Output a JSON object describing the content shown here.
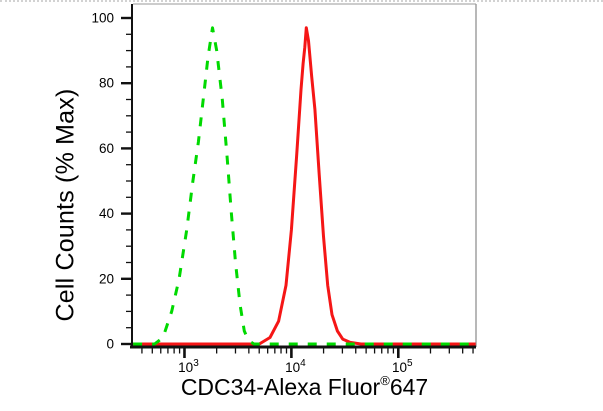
{
  "figure": {
    "background": "#ffffff",
    "frame_color": "#9a9a9a",
    "axis_color": "#111111",
    "text_color": "#000000"
  },
  "chart_data": {
    "type": "line",
    "chart_kind": "flow-cytometry-histogram-overlay",
    "title": "",
    "xlabel": "CDC34-Alexa Fluor®647",
    "x_axis_title": {
      "text": "CDC34-Alexa Fluor",
      "sup": "®",
      "suffix": "647"
    },
    "ylabel": "Cell Counts (% Max)",
    "x_scale": "log10",
    "x_range": [
      330,
      533000
    ],
    "ylim": [
      0,
      100
    ],
    "grid": "off",
    "legend": "none",
    "y_ticks": [
      0,
      20,
      40,
      60,
      80,
      100
    ],
    "y_minor_tick_step": 5,
    "x_major_ticks": [
      {
        "value": 1000,
        "label_base": "10",
        "label_exp": "3"
      },
      {
        "value": 10000,
        "label_base": "10",
        "label_exp": "4"
      },
      {
        "value": 100000,
        "label_base": "10",
        "label_exp": "5"
      }
    ],
    "series": [
      {
        "name": "red-solid",
        "style": "solid",
        "color": "#f51616",
        "stroke_width": 3,
        "peak": {
          "x": 13800,
          "y": 97
        },
        "points": [
          [
            331,
            0
          ],
          [
            5010,
            0
          ],
          [
            6310,
            2
          ],
          [
            7590,
            7
          ],
          [
            8910,
            18
          ],
          [
            10000,
            35
          ],
          [
            11220,
            58
          ],
          [
            12300,
            78
          ],
          [
            12880,
            86
          ],
          [
            13340,
            91
          ],
          [
            13800,
            97
          ],
          [
            14450,
            93
          ],
          [
            15490,
            82
          ],
          [
            16600,
            72
          ],
          [
            18200,
            52
          ],
          [
            19950,
            33
          ],
          [
            21880,
            18
          ],
          [
            23990,
            9
          ],
          [
            26920,
            4
          ],
          [
            30200,
            1.5
          ],
          [
            35480,
            0.5
          ],
          [
            44670,
            0
          ],
          [
            530000,
            0
          ]
        ]
      },
      {
        "name": "green-dashed",
        "style": "dashed",
        "color": "#00d900",
        "stroke_width": 3,
        "dash": "9 10",
        "peak": {
          "x": 1830,
          "y": 97
        },
        "points": [
          [
            331,
            0
          ],
          [
            525,
            0
          ],
          [
            630,
            2
          ],
          [
            760,
            10
          ],
          [
            890,
            20
          ],
          [
            1050,
            35
          ],
          [
            1200,
            50
          ],
          [
            1350,
            62
          ],
          [
            1510,
            76
          ],
          [
            1660,
            88
          ],
          [
            1830,
            97
          ],
          [
            2000,
            90
          ],
          [
            2260,
            75
          ],
          [
            2510,
            57
          ],
          [
            2750,
            40
          ],
          [
            3000,
            25
          ],
          [
            3310,
            12
          ],
          [
            3630,
            4
          ],
          [
            3980,
            1
          ],
          [
            4470,
            0
          ],
          [
            530000,
            0
          ]
        ]
      }
    ]
  }
}
